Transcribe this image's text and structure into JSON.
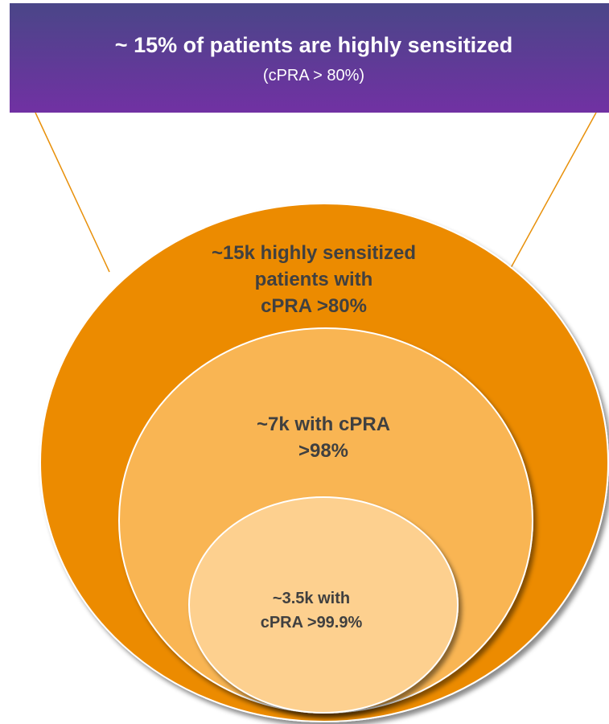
{
  "header": {
    "title": "~ 15% of patients are highly sensitized",
    "subtitle": "(cPRA > 80%)"
  },
  "nodes": [
    {
      "label": [
        "~15k highly sensitized",
        "patients with",
        "cPRA >80%"
      ]
    },
    {
      "label": [
        "~7k with cPRA",
        ">98%"
      ]
    },
    {
      "label": [
        "~3.5k with",
        "cPRA >99.9%"
      ]
    }
  ]
}
